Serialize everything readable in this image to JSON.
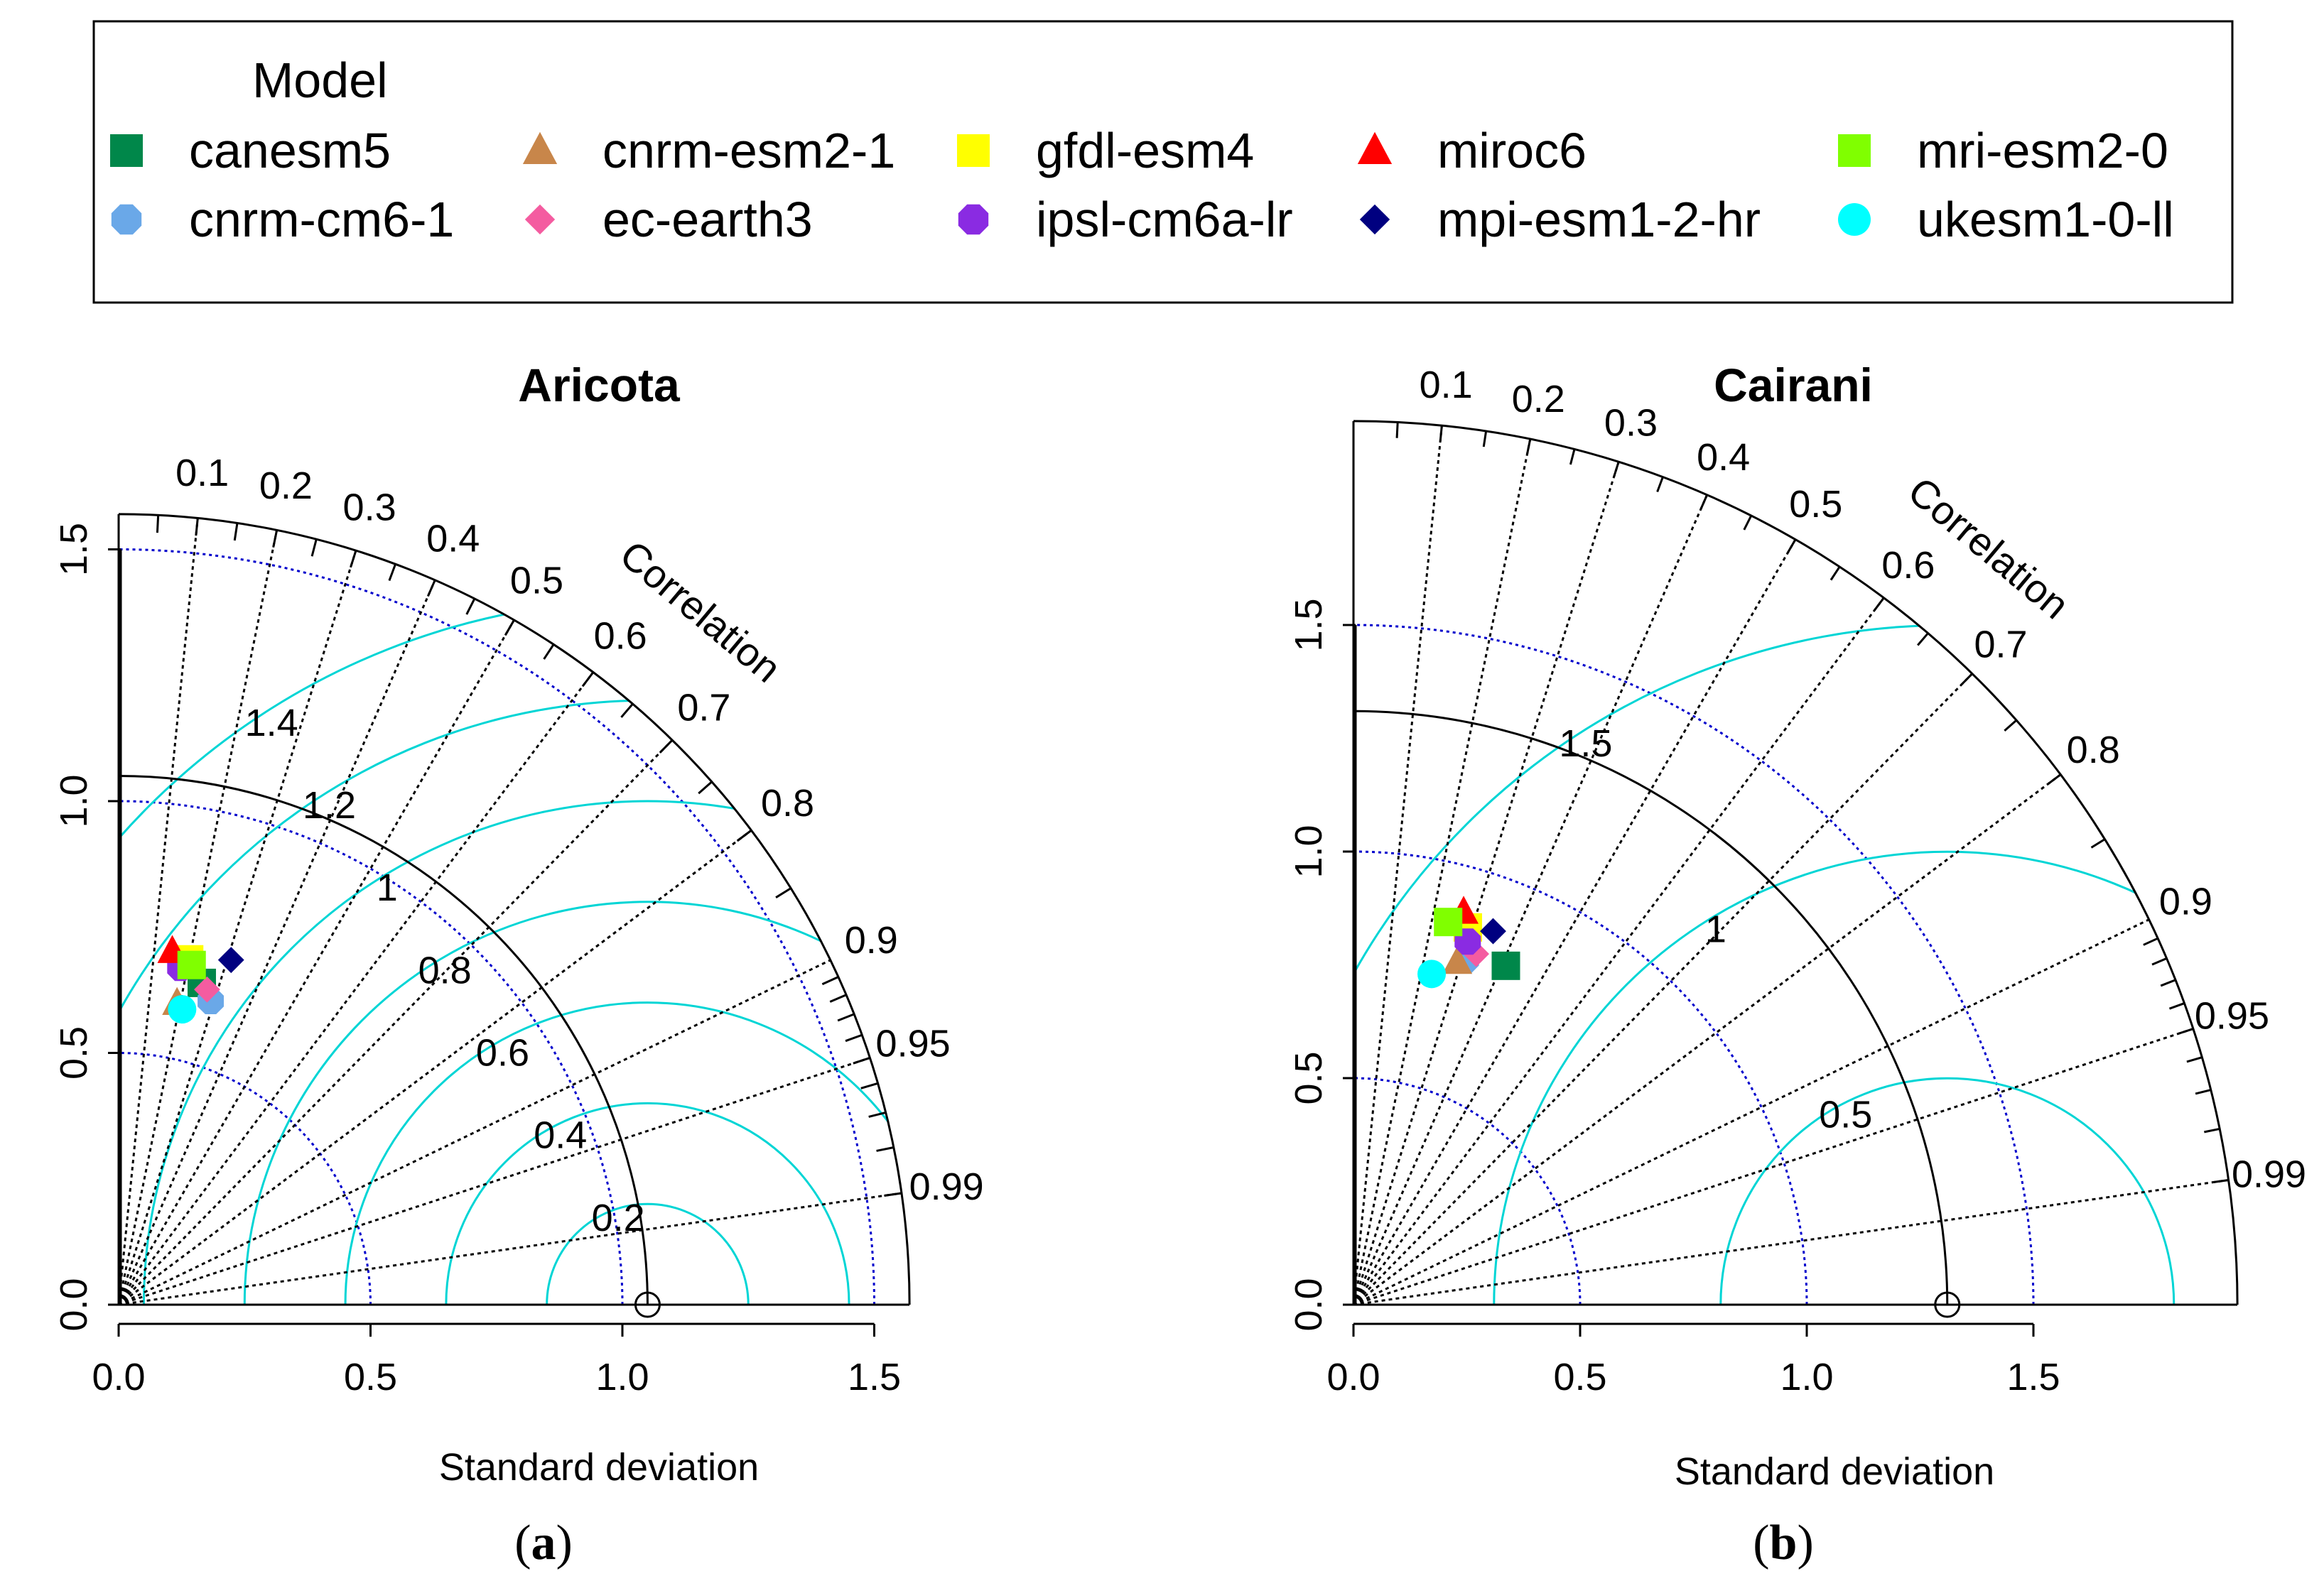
{
  "legend": {
    "title": "Model",
    "models": [
      {
        "name": "canesm5",
        "color": "#00874A",
        "shape": "square"
      },
      {
        "name": "cnrm-cm6-1",
        "color": "#6AA8E8",
        "shape": "octagon"
      },
      {
        "name": "cnrm-esm2-1",
        "color": "#C8864A",
        "shape": "triangle"
      },
      {
        "name": "ec-earth3",
        "color": "#F45CA0",
        "shape": "diamond"
      },
      {
        "name": "gfdl-esm4",
        "color": "#FFFF00",
        "shape": "square"
      },
      {
        "name": "ipsl-cm6a-lr",
        "color": "#8A2BE2",
        "shape": "octagon"
      },
      {
        "name": "miroc6",
        "color": "#FF0000",
        "shape": "triangle"
      },
      {
        "name": "mpi-esm1-2-hr",
        "color": "#000080",
        "shape": "diamond"
      },
      {
        "name": "mri-esm2-0",
        "color": "#80FF00",
        "shape": "square"
      },
      {
        "name": "ukesm1-0-ll",
        "color": "#00FFFF",
        "shape": "circle"
      }
    ]
  },
  "colors": {
    "rms": "#00D5D5",
    "sd_ref": "#0000CC",
    "corr_line": "#000000",
    "obs_arc": "#000000"
  },
  "chart_data": [
    {
      "type": "taylor",
      "title": "Aricota",
      "caption": "a",
      "xlabel": "Standard deviation",
      "correlation_label": "Correlation",
      "sd_max": 1.57,
      "obs_sd": 1.05,
      "axis_ticks": [
        0.0,
        0.5,
        1.0,
        1.5
      ],
      "axis_tick_labels": [
        "0.0",
        "0.5",
        "1.0",
        "1.5"
      ],
      "corr_labels": [
        "0.1",
        "0.2",
        "0.3",
        "0.4",
        "0.5",
        "0.6",
        "0.7",
        "0.8",
        "0.9",
        "0.95",
        "0.99"
      ],
      "corr_lines": [
        0.1,
        0.2,
        0.3,
        0.4,
        0.5,
        0.6,
        0.7,
        0.8,
        0.9,
        0.95,
        0.99
      ],
      "sd_ref_arcs": [
        0.5,
        1.0,
        1.5
      ],
      "rms_arcs": [
        0.2,
        0.4,
        0.6,
        0.8,
        1.0,
        1.2,
        1.4
      ],
      "rms_labels": [
        "0.2",
        "0.4",
        "0.6",
        "0.8",
        "1",
        "1.2",
        "1.4"
      ],
      "points": [
        {
          "model": "canesm5",
          "sd": 0.66,
          "corr": 0.25
        },
        {
          "model": "cnrm-cm6-1",
          "sd": 0.63,
          "corr": 0.29
        },
        {
          "model": "cnrm-esm2-1",
          "sd": 0.61,
          "corr": 0.19
        },
        {
          "model": "ec-earth3",
          "sd": 0.65,
          "corr": 0.27
        },
        {
          "model": "gfdl-esm4",
          "sd": 0.7,
          "corr": 0.2
        },
        {
          "model": "ipsl-cm6a-lr",
          "sd": 0.68,
          "corr": 0.18
        },
        {
          "model": "miroc6",
          "sd": 0.71,
          "corr": 0.15
        },
        {
          "model": "mpi-esm1-2-hr",
          "sd": 0.72,
          "corr": 0.31
        },
        {
          "model": "mri-esm2-0",
          "sd": 0.69,
          "corr": 0.21
        },
        {
          "model": "ukesm1-0-ll",
          "sd": 0.6,
          "corr": 0.21
        }
      ]
    },
    {
      "type": "taylor",
      "title": "Cairani",
      "caption": "b",
      "xlabel": "Standard deviation",
      "correlation_label": "Correlation",
      "sd_max": 1.95,
      "obs_sd": 1.31,
      "axis_ticks": [
        0.0,
        0.5,
        1.0,
        1.5
      ],
      "axis_tick_labels": [
        "0.0",
        "0.5",
        "1.0",
        "1.5"
      ],
      "corr_labels": [
        "0.1",
        "0.2",
        "0.3",
        "0.4",
        "0.5",
        "0.6",
        "0.7",
        "0.8",
        "0.9",
        "0.95",
        "0.99"
      ],
      "corr_lines": [
        0.1,
        0.2,
        0.3,
        0.4,
        0.5,
        0.6,
        0.7,
        0.8,
        0.9,
        0.95,
        0.99
      ],
      "sd_ref_arcs": [
        0.5,
        1.0,
        1.5
      ],
      "rms_arcs": [
        0.5,
        1.0,
        1.5
      ],
      "rms_labels": [
        "0.5",
        "1",
        "1.5"
      ],
      "points": [
        {
          "model": "canesm5",
          "sd": 0.82,
          "corr": 0.41
        },
        {
          "model": "cnrm-cm6-1",
          "sd": 0.8,
          "corr": 0.31
        },
        {
          "model": "cnrm-esm2-1",
          "sd": 0.79,
          "corr": 0.29
        },
        {
          "model": "ec-earth3",
          "sd": 0.82,
          "corr": 0.33
        },
        {
          "model": "gfdl-esm4",
          "sd": 0.87,
          "corr": 0.29
        },
        {
          "model": "ipsl-cm6a-lr",
          "sd": 0.84,
          "corr": 0.3
        },
        {
          "model": "miroc6",
          "sd": 0.9,
          "corr": 0.27
        },
        {
          "model": "mpi-esm1-2-hr",
          "sd": 0.88,
          "corr": 0.35
        },
        {
          "model": "mri-esm2-0",
          "sd": 0.87,
          "corr": 0.24
        },
        {
          "model": "ukesm1-0-ll",
          "sd": 0.75,
          "corr": 0.23
        }
      ]
    }
  ]
}
